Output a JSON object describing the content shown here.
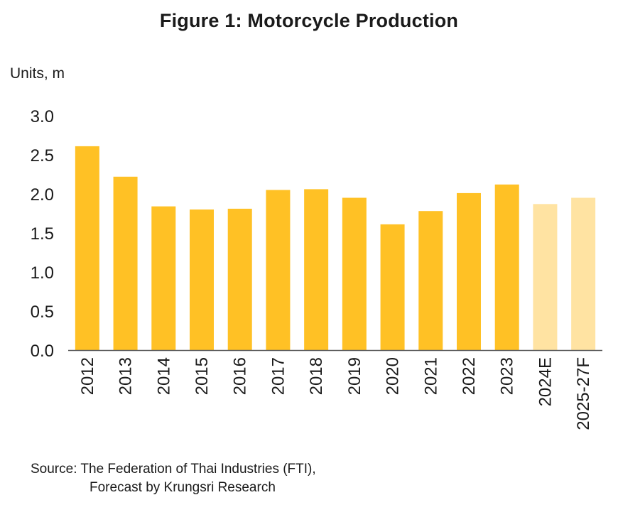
{
  "chart_data": {
    "type": "bar",
    "title": "Figure 1: Motorcycle Production",
    "ylabel": "Units, m",
    "xlabel": "",
    "ylim": [
      0,
      3.0
    ],
    "yticks": [
      "0.0",
      "0.5",
      "1.0",
      "1.5",
      "2.0",
      "2.5",
      "3.0"
    ],
    "categories": [
      "2012",
      "2013",
      "2014",
      "2015",
      "2016",
      "2017",
      "2018",
      "2019",
      "2020",
      "2021",
      "2022",
      "2023",
      "2024E",
      "2025-27F"
    ],
    "values": [
      2.61,
      2.22,
      1.84,
      1.8,
      1.81,
      2.05,
      2.06,
      1.95,
      1.61,
      1.78,
      2.01,
      2.12,
      1.87,
      1.95
    ],
    "forecast_categories": [
      "2024E",
      "2025-27F"
    ],
    "grid": false,
    "legend": "none",
    "colors": {
      "actual": "#FFC125",
      "forecast": "#FFE3A2",
      "axis": "#595959"
    }
  },
  "source": {
    "line1": "Source: The Federation of Thai Industries (FTI),",
    "line2": "Forecast by Krungsri Research"
  }
}
